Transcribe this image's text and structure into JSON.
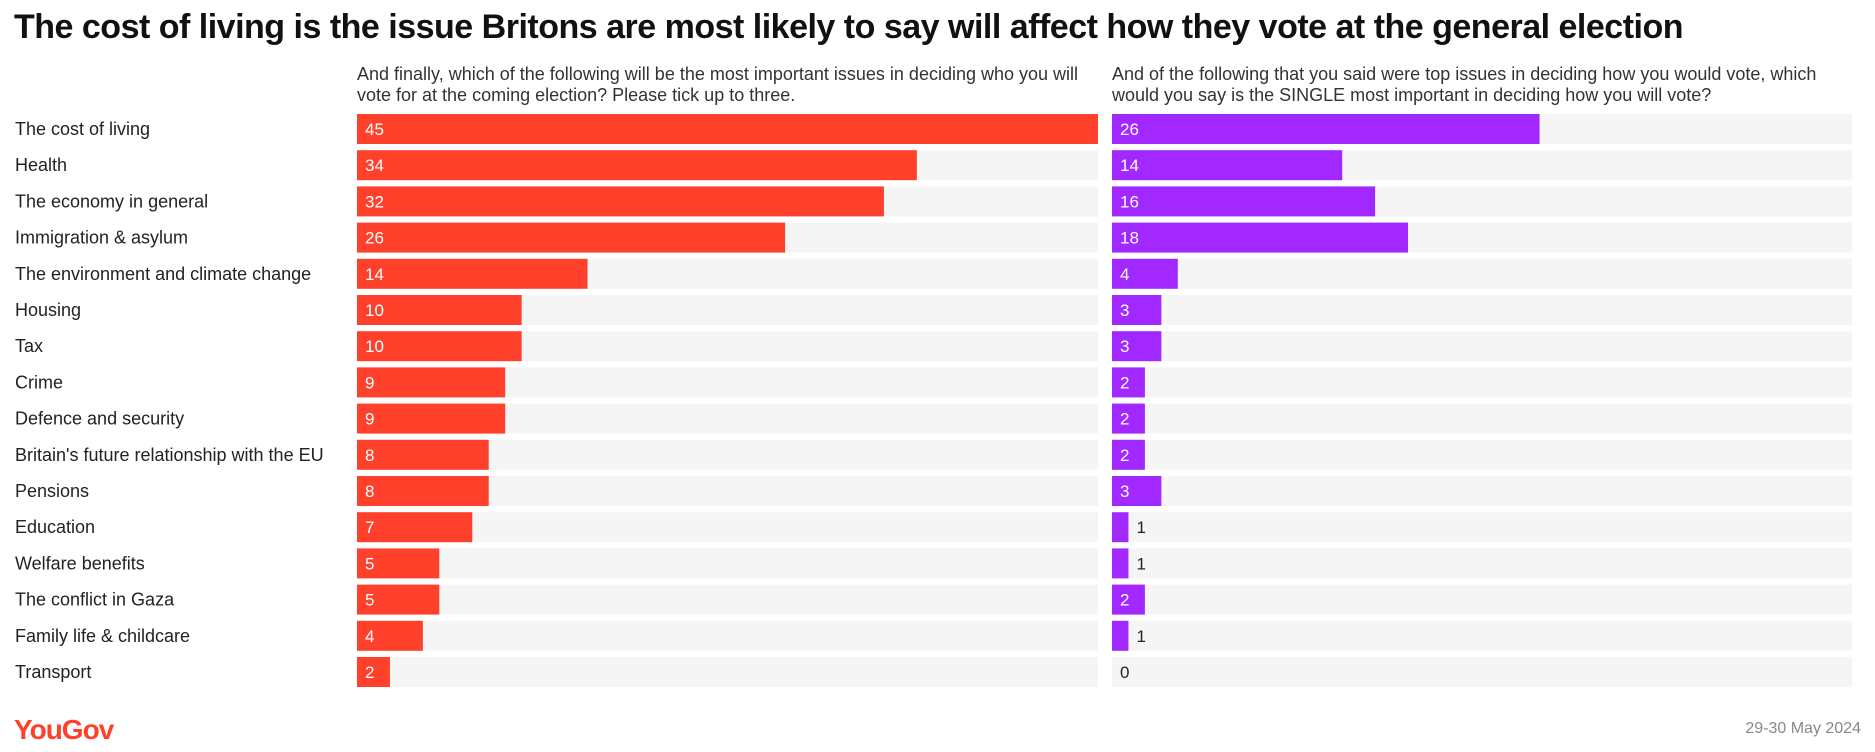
{
  "title": "The cost of living is the issue Britons are most likely to say will affect how they vote at the general election",
  "brand": "YouGov",
  "date": "29-30 May 2024",
  "colors": {
    "left_bar": "#ff412c",
    "right_bar": "#a128ff",
    "track": "#f5f5f5",
    "brand": "#ff412c"
  },
  "chart_data": [
    {
      "type": "bar",
      "orientation": "horizontal",
      "subtitle": "And finally, which of the following will be the most important issues in deciding who you will vote for at the coming election? Please tick up to three.",
      "categories": [
        "The cost of living",
        "Health",
        "The economy in general",
        "Immigration & asylum",
        "The environment and climate change",
        "Housing",
        "Tax",
        "Crime",
        "Defence and security",
        "Britain's future relationship with the EU",
        "Pensions",
        "Education",
        "Welfare benefits",
        "The conflict in Gaza",
        "Family life & childcare",
        "Transport"
      ],
      "values": [
        45,
        34,
        32,
        26,
        14,
        10,
        10,
        9,
        9,
        8,
        8,
        7,
        5,
        5,
        4,
        2
      ],
      "xlim": [
        0,
        45
      ]
    },
    {
      "type": "bar",
      "orientation": "horizontal",
      "subtitle": "And of the following that you said were top issues in deciding how you would vote, which would you say is the SINGLE most important in deciding how you will vote?",
      "categories": [
        "The cost of living",
        "Health",
        "The economy in general",
        "Immigration & asylum",
        "The environment and climate change",
        "Housing",
        "Tax",
        "Crime",
        "Defence and security",
        "Britain's future relationship with the EU",
        "Pensions",
        "Education",
        "Welfare benefits",
        "The conflict in Gaza",
        "Family life & childcare",
        "Transport"
      ],
      "values": [
        26,
        14,
        16,
        18,
        4,
        3,
        3,
        2,
        2,
        2,
        3,
        1,
        1,
        2,
        1,
        0
      ],
      "xlim": [
        0,
        45
      ]
    }
  ]
}
